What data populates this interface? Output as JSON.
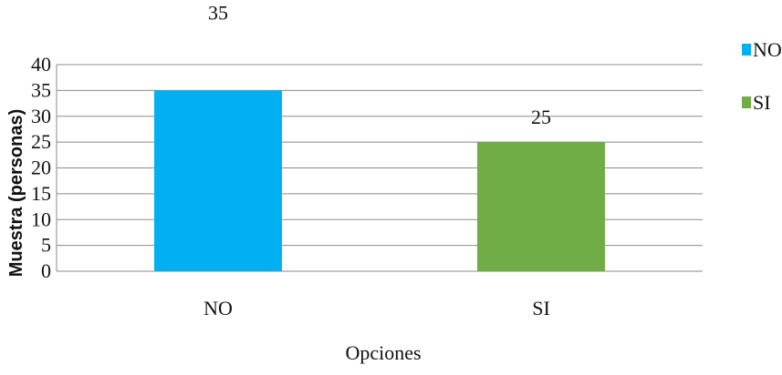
{
  "chart_data": {
    "type": "bar",
    "categories": [
      "NO",
      "SI"
    ],
    "values": [
      35,
      25
    ],
    "colors": [
      "#00B0F0",
      "#70AD47"
    ],
    "data_labels": [
      "35",
      "25"
    ],
    "xlabel": "Opciones",
    "ylabel": "Muestra (personas)",
    "ylim": [
      0,
      40
    ],
    "yticks": [
      "0",
      "5",
      "10",
      "15",
      "20",
      "25",
      "30",
      "35",
      "40"
    ],
    "grid": true,
    "legend": {
      "placement": "right",
      "entries": [
        {
          "label": "NO",
          "color": "#00B0F0"
        },
        {
          "label": "SI",
          "color": "#70AD47"
        }
      ]
    }
  }
}
